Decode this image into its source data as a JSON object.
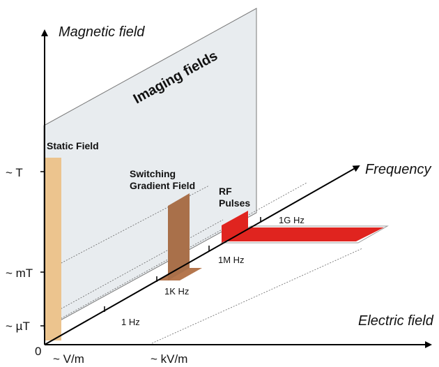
{
  "axes": {
    "vertical_label": "Magnetic field",
    "diagonal_label": "Frequency",
    "horizontal_label": "Electric field",
    "origin_label": "0"
  },
  "magnetic_ticks": [
    "~ T",
    "~ mT",
    "~ µT"
  ],
  "electric_ticks": [
    "~ V/m",
    "~ kV/m"
  ],
  "frequency_ticks": [
    "1 Hz",
    "1K Hz",
    "1M Hz",
    "1G Hz"
  ],
  "plane_label": "Imaging fields",
  "fields": {
    "static": "Static Field",
    "gradient_line1": "Switching",
    "gradient_line2": "Gradient Field",
    "rf_line1": "RF",
    "rf_line2": "Pulses"
  },
  "colors": {
    "static_field": "#ecc48e",
    "gradient_field": "#a9704a",
    "gradient_floor": "#b5774e",
    "rf_pulse": "#e0241f",
    "plane_fill": "#e8ecef",
    "axis": "#000000"
  }
}
